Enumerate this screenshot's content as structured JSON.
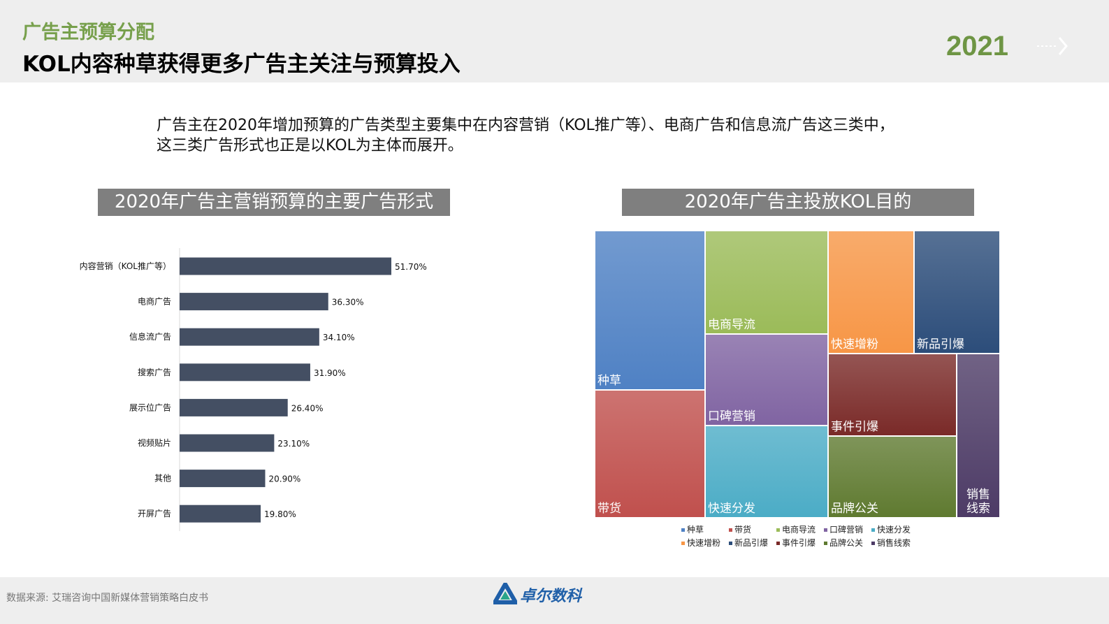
{
  "header": {
    "subtitle": "广告主预算分配",
    "title": "KOL内容种草获得更多广告主关注与预算投入",
    "year": "2021"
  },
  "description": "广告主在2020年增加预算的广告类型主要集中在内容营销（KOL推广等）、电商广告和信息流广告这三类中，这三类广告形式也正是以KOL为主体而展开。",
  "chart_data": [
    {
      "type": "bar",
      "orientation": "horizontal",
      "title": "2020年广告主营销预算的主要广告形式",
      "categories": [
        "内容营销（KOL推广等）",
        "电商广告",
        "信息流广告",
        "搜索广告",
        "展示位广告",
        "视频贴片",
        "其他",
        "开屏广告"
      ],
      "values": [
        51.7,
        36.3,
        34.1,
        31.9,
        26.4,
        23.1,
        20.9,
        19.8
      ],
      "labels": [
        "51.70%",
        "36.30%",
        "34.10%",
        "31.90%",
        "26.40%",
        "23.10%",
        "20.90%",
        "19.80%"
      ],
      "unit": "%",
      "color": "#444f63",
      "grid": false
    },
    {
      "type": "treemap",
      "title": "2020年广告主投放KOL目的",
      "categories": [
        "种草",
        "带货",
        "电商导流",
        "口碑营销",
        "快速分发",
        "快速增粉",
        "新品引爆",
        "事件引爆",
        "品牌公关",
        "销售线索"
      ],
      "cell_labels": [
        "种草",
        "带货",
        "电商导流",
        "口碑营销",
        "快速分发",
        "快速增粉",
        "新品引爆",
        "事件引爆",
        "品牌公关",
        "销售\n线索"
      ],
      "colors": [
        "#4f81c4",
        "#c0504d",
        "#9bbb59",
        "#8064a2",
        "#4bacc6",
        "#f79646",
        "#2c4d7a",
        "#7a2a28",
        "#5f7a30",
        "#4d3b66"
      ],
      "legend_placement": "bottom"
    }
  ],
  "footer": {
    "source": "数据来源: 艾瑞咨询中国新媒体营销策略白皮书",
    "logo": "卓尔数科"
  }
}
